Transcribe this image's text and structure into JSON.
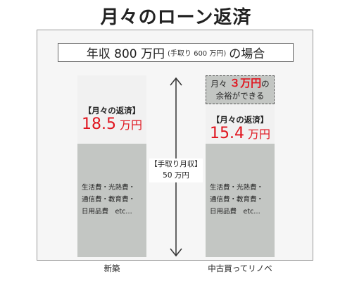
{
  "title": "月々のローン返済",
  "condition": {
    "prefix": "年収 800 万円",
    "note": "(手取り 600 万円)",
    "suffix": "の場合"
  },
  "income": {
    "label": "【手取り月収】",
    "value": "50 万円"
  },
  "bars": [
    {
      "caption": "新築",
      "payment_label": "【月々の返済】",
      "payment_number": "18.5",
      "payment_unit": "万円",
      "expenses": [
        "生活費・光熱費・",
        "通信費・教育費・",
        "日用品費　etc…"
      ]
    },
    {
      "caption": "中古買ってリノベ",
      "saving_prefix": "月々",
      "saving_amount": "３万円",
      "saving_suffix": "の",
      "saving_line2": "余裕ができる",
      "payment_label": "【月々の返済】",
      "payment_number": "15.4",
      "payment_unit": "万円",
      "expenses": [
        "生活費・光熱費・",
        "通信費・教育費・",
        "日用品費　etc…"
      ]
    }
  ],
  "colors": {
    "accent_red": "#e0141e",
    "expense_gray": "#c3c6c3",
    "payment_bg": "#f1f1f1"
  }
}
